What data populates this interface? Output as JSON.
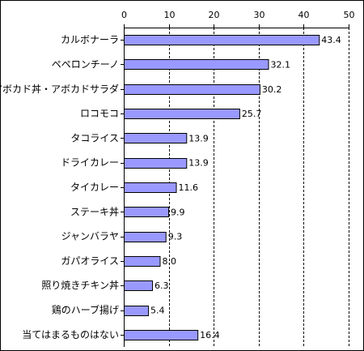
{
  "chart_data": {
    "type": "bar",
    "orientation": "horizontal",
    "categories": [
      "カルボナーラ",
      "ペペロンチーノ",
      "アボカド丼・アボカドサラダ",
      "ロコモコ",
      "タコライス",
      "ドライカレー",
      "タイカレー",
      "ステーキ丼",
      "ジャンバラヤ",
      "ガパオライス",
      "照り焼きチキン丼",
      "鶏のハーブ揚げ",
      "当てはまるものはない"
    ],
    "values": [
      43.4,
      32.1,
      30.2,
      25.7,
      13.9,
      13.9,
      11.6,
      9.9,
      9.3,
      8.0,
      6.3,
      5.4,
      16.4
    ],
    "value_labels": [
      "43.4",
      "32.1",
      "30.2",
      "25.7",
      "13.9",
      "13.9",
      "11.6",
      "9.9",
      "9.3",
      "8.0",
      "6.3",
      "5.4",
      "16.4"
    ],
    "xlim": [
      0,
      50
    ],
    "ticks": [
      0,
      10,
      20,
      30,
      40,
      50
    ],
    "tick_labels": [
      "0",
      "10",
      "20",
      "30",
      "40",
      "50"
    ],
    "axis_position": "top",
    "grid": "vertical dashed",
    "bar_color": "#9999ff",
    "bar_edge_color": "#000000",
    "grid_color": "#000000"
  }
}
